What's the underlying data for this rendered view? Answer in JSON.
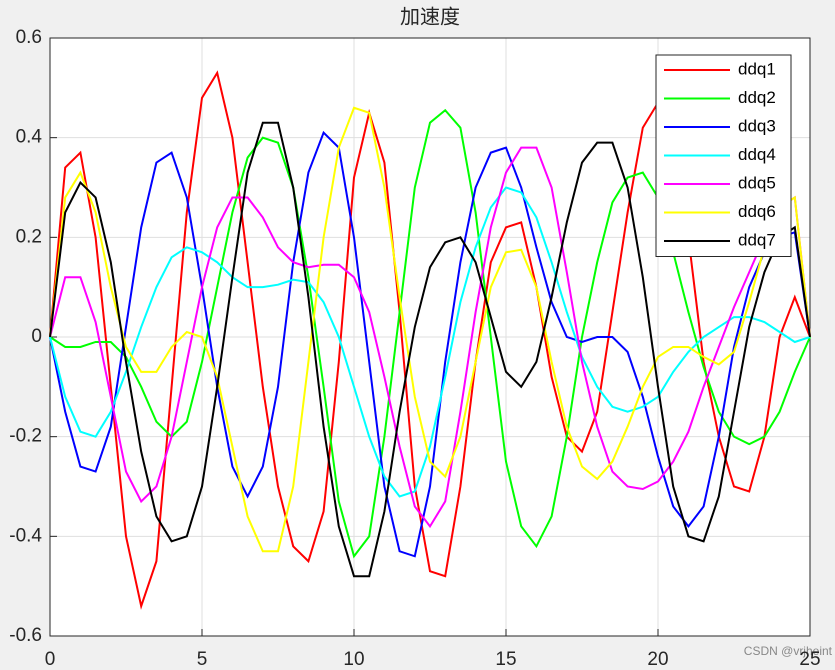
{
  "chart_data": {
    "type": "line",
    "title": "加速度",
    "x": [
      0,
      0.5,
      1,
      1.5,
      2,
      2.5,
      3,
      3.5,
      4,
      4.5,
      5,
      5.5,
      6,
      6.5,
      7,
      7.5,
      8,
      8.5,
      9,
      9.5,
      10,
      10.5,
      11,
      11.5,
      12,
      12.5,
      13,
      13.5,
      14,
      14.5,
      15,
      15.5,
      16,
      16.5,
      17,
      17.5,
      18,
      18.5,
      19,
      19.5,
      20,
      20.5,
      21,
      21.5,
      22,
      22.5,
      23,
      23.5,
      24,
      24.5,
      25
    ],
    "series": [
      {
        "name": "ddq1",
        "color": "#ff0000",
        "values": [
          0,
          0.34,
          0.37,
          0.2,
          -0.1,
          -0.4,
          -0.54,
          -0.45,
          -0.1,
          0.25,
          0.48,
          0.53,
          0.4,
          0.15,
          -0.1,
          -0.3,
          -0.42,
          -0.45,
          -0.35,
          -0.05,
          0.32,
          0.45,
          0.35,
          0.05,
          -0.3,
          -0.47,
          -0.48,
          -0.3,
          -0.05,
          0.15,
          0.22,
          0.23,
          0.1,
          -0.08,
          -0.2,
          -0.23,
          -0.15,
          0.05,
          0.25,
          0.42,
          0.47,
          0.4,
          0.2,
          -0.05,
          -0.2,
          -0.3,
          -0.31,
          -0.2,
          0,
          0.08,
          0
        ]
      },
      {
        "name": "ddq2",
        "color": "#00ff00",
        "values": [
          0,
          -0.02,
          -0.02,
          -0.01,
          -0.01,
          -0.04,
          -0.1,
          -0.17,
          -0.2,
          -0.17,
          -0.05,
          0.1,
          0.25,
          0.36,
          0.4,
          0.39,
          0.3,
          0.12,
          -0.1,
          -0.33,
          -0.44,
          -0.4,
          -0.2,
          0.05,
          0.3,
          0.43,
          0.455,
          0.42,
          0.25,
          0,
          -0.25,
          -0.38,
          -0.42,
          -0.36,
          -0.2,
          0,
          0.15,
          0.27,
          0.32,
          0.33,
          0.28,
          0.17,
          0.05,
          -0.06,
          -0.15,
          -0.2,
          -0.215,
          -0.2,
          -0.15,
          -0.07,
          0
        ]
      },
      {
        "name": "ddq3",
        "color": "#0000ff",
        "values": [
          0,
          -0.15,
          -0.26,
          -0.27,
          -0.18,
          0.02,
          0.22,
          0.35,
          0.37,
          0.28,
          0.1,
          -0.1,
          -0.26,
          -0.32,
          -0.26,
          -0.1,
          0.15,
          0.33,
          0.41,
          0.38,
          0.2,
          -0.05,
          -0.3,
          -0.43,
          -0.44,
          -0.3,
          -0.05,
          0.15,
          0.3,
          0.37,
          0.38,
          0.3,
          0.18,
          0.07,
          0,
          -0.01,
          0,
          0,
          -0.03,
          -0.12,
          -0.24,
          -0.34,
          -0.38,
          -0.34,
          -0.2,
          -0.02,
          0.1,
          0.17,
          0.2,
          0.21,
          0
        ]
      },
      {
        "name": "ddq4",
        "color": "#00ffff",
        "values": [
          0,
          -0.12,
          -0.19,
          -0.2,
          -0.15,
          -0.07,
          0.02,
          0.1,
          0.16,
          0.18,
          0.17,
          0.15,
          0.12,
          0.1,
          0.1,
          0.105,
          0.115,
          0.11,
          0.07,
          0,
          -0.1,
          -0.2,
          -0.28,
          -0.32,
          -0.31,
          -0.22,
          -0.08,
          0.07,
          0.18,
          0.26,
          0.3,
          0.29,
          0.24,
          0.15,
          0.05,
          -0.04,
          -0.1,
          -0.14,
          -0.15,
          -0.14,
          -0.12,
          -0.07,
          -0.03,
          0,
          0.02,
          0.04,
          0.04,
          0.03,
          0.01,
          -0.01,
          0
        ]
      },
      {
        "name": "ddq5",
        "color": "#ff00ff",
        "values": [
          0,
          0.12,
          0.12,
          0.03,
          -0.12,
          -0.27,
          -0.33,
          -0.3,
          -0.2,
          -0.05,
          0.1,
          0.22,
          0.28,
          0.28,
          0.24,
          0.18,
          0.15,
          0.14,
          0.145,
          0.145,
          0.12,
          0.05,
          -0.08,
          -0.22,
          -0.34,
          -0.38,
          -0.33,
          -0.15,
          0.05,
          0.22,
          0.33,
          0.38,
          0.38,
          0.3,
          0.13,
          -0.05,
          -0.18,
          -0.27,
          -0.3,
          -0.305,
          -0.29,
          -0.25,
          -0.19,
          -0.1,
          -0.02,
          0.06,
          0.13,
          0.2,
          0.26,
          0.28,
          0
        ]
      },
      {
        "name": "ddq6",
        "color": "#ffff00",
        "values": [
          0,
          0.28,
          0.33,
          0.25,
          0.1,
          -0.02,
          -0.07,
          -0.07,
          -0.02,
          0.01,
          0,
          -0.08,
          -0.22,
          -0.36,
          -0.43,
          -0.43,
          -0.3,
          -0.05,
          0.2,
          0.38,
          0.46,
          0.45,
          0.3,
          0.08,
          -0.12,
          -0.25,
          -0.28,
          -0.2,
          -0.05,
          0.1,
          0.17,
          0.175,
          0.1,
          -0.05,
          -0.18,
          -0.26,
          -0.285,
          -0.25,
          -0.18,
          -0.1,
          -0.04,
          -0.02,
          -0.02,
          -0.04,
          -0.055,
          -0.03,
          0.07,
          0.18,
          0.26,
          0.28,
          0
        ]
      },
      {
        "name": "ddq7",
        "color": "#000000",
        "values": [
          0,
          0.25,
          0.31,
          0.28,
          0.15,
          -0.05,
          -0.23,
          -0.36,
          -0.41,
          -0.4,
          -0.3,
          -0.1,
          0.12,
          0.33,
          0.43,
          0.43,
          0.3,
          0.08,
          -0.18,
          -0.38,
          -0.48,
          -0.48,
          -0.35,
          -0.15,
          0.02,
          0.14,
          0.19,
          0.2,
          0.15,
          0.04,
          -0.07,
          -0.1,
          -0.05,
          0.08,
          0.23,
          0.35,
          0.39,
          0.39,
          0.3,
          0.12,
          -0.1,
          -0.3,
          -0.4,
          -0.41,
          -0.32,
          -0.15,
          0.02,
          0.13,
          0.2,
          0.22,
          0
        ]
      }
    ],
    "xlim": [
      0,
      25
    ],
    "xticks": [
      0,
      5,
      10,
      15,
      20,
      25
    ],
    "ylim": [
      -0.6,
      0.6
    ],
    "yticks": [
      -0.6,
      -0.4,
      -0.2,
      0,
      0.2,
      0.4,
      0.6
    ],
    "grid": true,
    "legend": "northeast",
    "watermark": "CSDN @vrjheint"
  }
}
